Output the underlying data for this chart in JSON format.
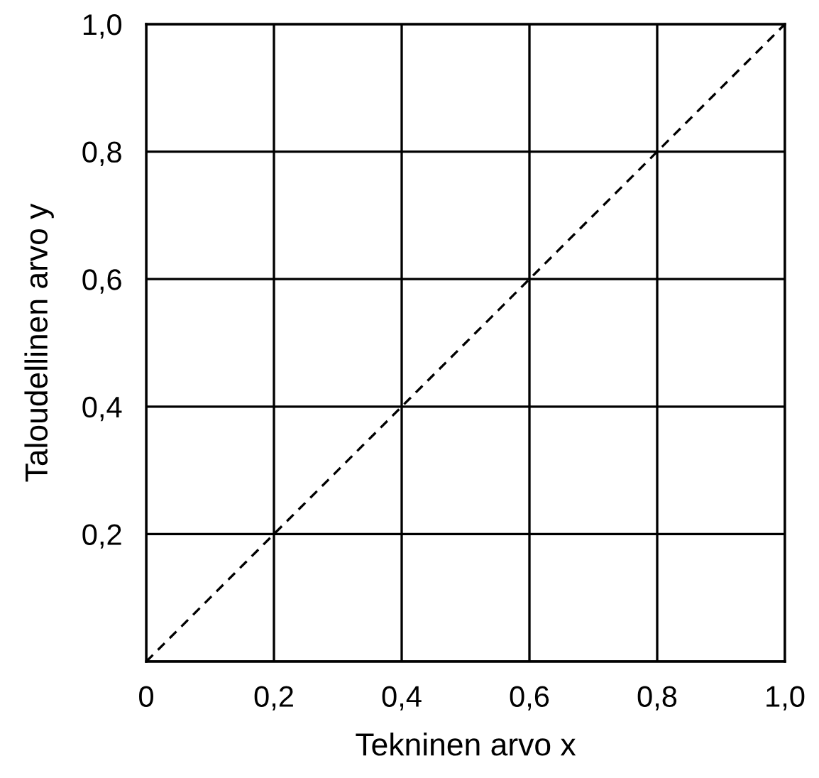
{
  "chart_data": {
    "type": "line",
    "xlabel": "Tekninen arvo x",
    "ylabel": "Taloudellinen arvo y",
    "x": [
      0,
      1
    ],
    "series": [
      {
        "color": "#000000",
        "values": [
          0,
          1
        ],
        "line_style": "dashed"
      }
    ],
    "xlim": [
      0,
      1
    ],
    "ylim": [
      0,
      1
    ],
    "xticks": [
      {
        "value": 0,
        "label": "0"
      },
      {
        "value": 0.2,
        "label": "0,2"
      },
      {
        "value": 0.4,
        "label": "0,4"
      },
      {
        "value": 0.6,
        "label": "0,6"
      },
      {
        "value": 0.8,
        "label": "0,8"
      },
      {
        "value": 1,
        "label": "1,0"
      }
    ],
    "yticks": [
      {
        "value": 0,
        "label": null
      },
      {
        "value": 0.2,
        "label": "0,2"
      },
      {
        "value": 0.4,
        "label": "0,4"
      },
      {
        "value": 0.6,
        "label": "0,6"
      },
      {
        "value": 0.8,
        "label": "0,8"
      },
      {
        "value": 1,
        "label": "1,0"
      }
    ],
    "grid": true,
    "marker": "none"
  }
}
